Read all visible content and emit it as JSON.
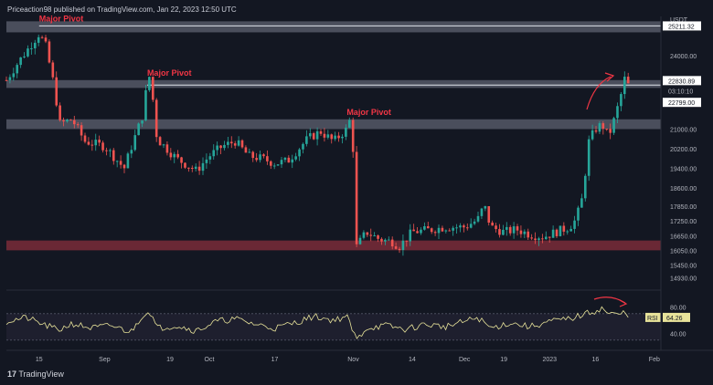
{
  "header": {
    "published": "Priceaction98 published on TradingView.com, Jan 22, 2023 12:50 UTC"
  },
  "branding": {
    "logo_text": "TradingView",
    "logo_icon": "tradingview-logo-icon"
  },
  "colors": {
    "background": "#131722",
    "candle_up": "#26a69a",
    "candle_down": "#ef5350",
    "zone_gray": "#5d6270",
    "zone_red": "#7a2c38",
    "pivot_label": "#f23645",
    "rsi_line": "#e8e39a",
    "arrow": "#f23645"
  },
  "price_axis": {
    "currency": "USDT",
    "ticks": [
      "24000.00",
      "21000.00",
      "20200.00",
      "19400.00",
      "18600.00",
      "17850.00",
      "17250.00",
      "16650.00",
      "16050.00",
      "15450.00",
      "14930.00"
    ],
    "current_price": "22830.89",
    "countdown": "03:10:10",
    "level_top": "25211.32",
    "level_mid": "22799.00"
  },
  "time_axis": {
    "labels": [
      "15",
      "Sep",
      "19",
      "Oct",
      "17",
      "Nov",
      "14",
      "Dec",
      "19",
      "2023",
      "16",
      "Feb"
    ]
  },
  "rsi_panel": {
    "label": "RSI",
    "value": "64.26",
    "ticks": [
      "80.00",
      "40.00"
    ]
  },
  "annotations": {
    "pivots": [
      "Major Pivot",
      "Major Pivot",
      "Major Pivot"
    ]
  },
  "chart_data": {
    "type": "candlestick",
    "symbol_quote": "USDT",
    "timeframe_axis_labels": [
      "15",
      "Sep",
      "19",
      "Oct",
      "17",
      "Nov",
      "14",
      "Dec",
      "19",
      "2023",
      "16",
      "Feb"
    ],
    "price_ylim": [
      14500,
      25600
    ],
    "price_path": [
      [
        0.0,
        23000
      ],
      [
        0.02,
        23800
      ],
      [
        0.05,
        24900
      ],
      [
        0.06,
        24400
      ],
      [
        0.075,
        22500
      ],
      [
        0.08,
        21200
      ],
      [
        0.1,
        21400
      ],
      [
        0.12,
        20500
      ],
      [
        0.15,
        20300
      ],
      [
        0.18,
        19400
      ],
      [
        0.19,
        20200
      ],
      [
        0.21,
        21700
      ],
      [
        0.215,
        23000
      ],
      [
        0.22,
        23200
      ],
      [
        0.23,
        20600
      ],
      [
        0.26,
        19800
      ],
      [
        0.29,
        19300
      ],
      [
        0.31,
        19900
      ],
      [
        0.33,
        20300
      ],
      [
        0.35,
        20500
      ],
      [
        0.37,
        19900
      ],
      [
        0.39,
        19800
      ],
      [
        0.41,
        19600
      ],
      [
        0.43,
        19700
      ],
      [
        0.46,
        20600
      ],
      [
        0.48,
        20900
      ],
      [
        0.5,
        20500
      ],
      [
        0.52,
        21000
      ],
      [
        0.525,
        21400
      ],
      [
        0.53,
        20100
      ],
      [
        0.535,
        16200
      ],
      [
        0.55,
        16800
      ],
      [
        0.57,
        16500
      ],
      [
        0.59,
        16400
      ],
      [
        0.6,
        16200
      ],
      [
        0.62,
        16800
      ],
      [
        0.65,
        16900
      ],
      [
        0.67,
        17000
      ],
      [
        0.7,
        17000
      ],
      [
        0.72,
        17300
      ],
      [
        0.73,
        17900
      ],
      [
        0.74,
        17000
      ],
      [
        0.76,
        16800
      ],
      [
        0.78,
        16900
      ],
      [
        0.8,
        16700
      ],
      [
        0.82,
        16600
      ],
      [
        0.84,
        16800
      ],
      [
        0.86,
        17000
      ],
      [
        0.87,
        17300
      ],
      [
        0.88,
        18200
      ],
      [
        0.89,
        20500
      ],
      [
        0.9,
        21000
      ],
      [
        0.91,
        21200
      ],
      [
        0.92,
        20700
      ],
      [
        0.93,
        21500
      ],
      [
        0.94,
        22500
      ],
      [
        0.945,
        23100
      ],
      [
        0.95,
        22800
      ]
    ],
    "zones": [
      {
        "color": "gray",
        "range": [
          24950,
          25400
        ]
      },
      {
        "color": "gray",
        "range": [
          22680,
          23000
        ]
      },
      {
        "color": "gray",
        "range": [
          21000,
          21400
        ]
      },
      {
        "color": "red",
        "range": [
          16050,
          16450
        ]
      }
    ],
    "horizontal_levels": [
      25211.32,
      22799.0
    ],
    "pivots": [
      {
        "label": "Major Pivot",
        "x_frac": 0.05,
        "price": 25211.32
      },
      {
        "label": "Major Pivot",
        "x_frac": 0.215,
        "price": 23000
      },
      {
        "label": "Major Pivot",
        "x_frac": 0.52,
        "price": 21400
      }
    ],
    "rsi": {
      "ylim": [
        20,
        100
      ],
      "levels": [
        70,
        30
      ],
      "last": 64.26,
      "path": [
        [
          0.0,
          58
        ],
        [
          0.03,
          64
        ],
        [
          0.06,
          52
        ],
        [
          0.08,
          45
        ],
        [
          0.1,
          55
        ],
        [
          0.13,
          48
        ],
        [
          0.16,
          52
        ],
        [
          0.19,
          42
        ],
        [
          0.21,
          70
        ],
        [
          0.22,
          72
        ],
        [
          0.23,
          48
        ],
        [
          0.26,
          52
        ],
        [
          0.29,
          44
        ],
        [
          0.32,
          58
        ],
        [
          0.35,
          62
        ],
        [
          0.38,
          54
        ],
        [
          0.41,
          48
        ],
        [
          0.44,
          56
        ],
        [
          0.47,
          66
        ],
        [
          0.5,
          60
        ],
        [
          0.52,
          66
        ],
        [
          0.535,
          30
        ],
        [
          0.55,
          48
        ],
        [
          0.58,
          52
        ],
        [
          0.61,
          46
        ],
        [
          0.64,
          54
        ],
        [
          0.67,
          50
        ],
        [
          0.7,
          58
        ],
        [
          0.72,
          64
        ],
        [
          0.74,
          48
        ],
        [
          0.77,
          56
        ],
        [
          0.8,
          50
        ],
        [
          0.83,
          58
        ],
        [
          0.86,
          62
        ],
        [
          0.88,
          68
        ],
        [
          0.9,
          74
        ],
        [
          0.91,
          78
        ],
        [
          0.92,
          70
        ],
        [
          0.935,
          68
        ],
        [
          0.945,
          72
        ],
        [
          0.95,
          64.26
        ]
      ]
    }
  }
}
